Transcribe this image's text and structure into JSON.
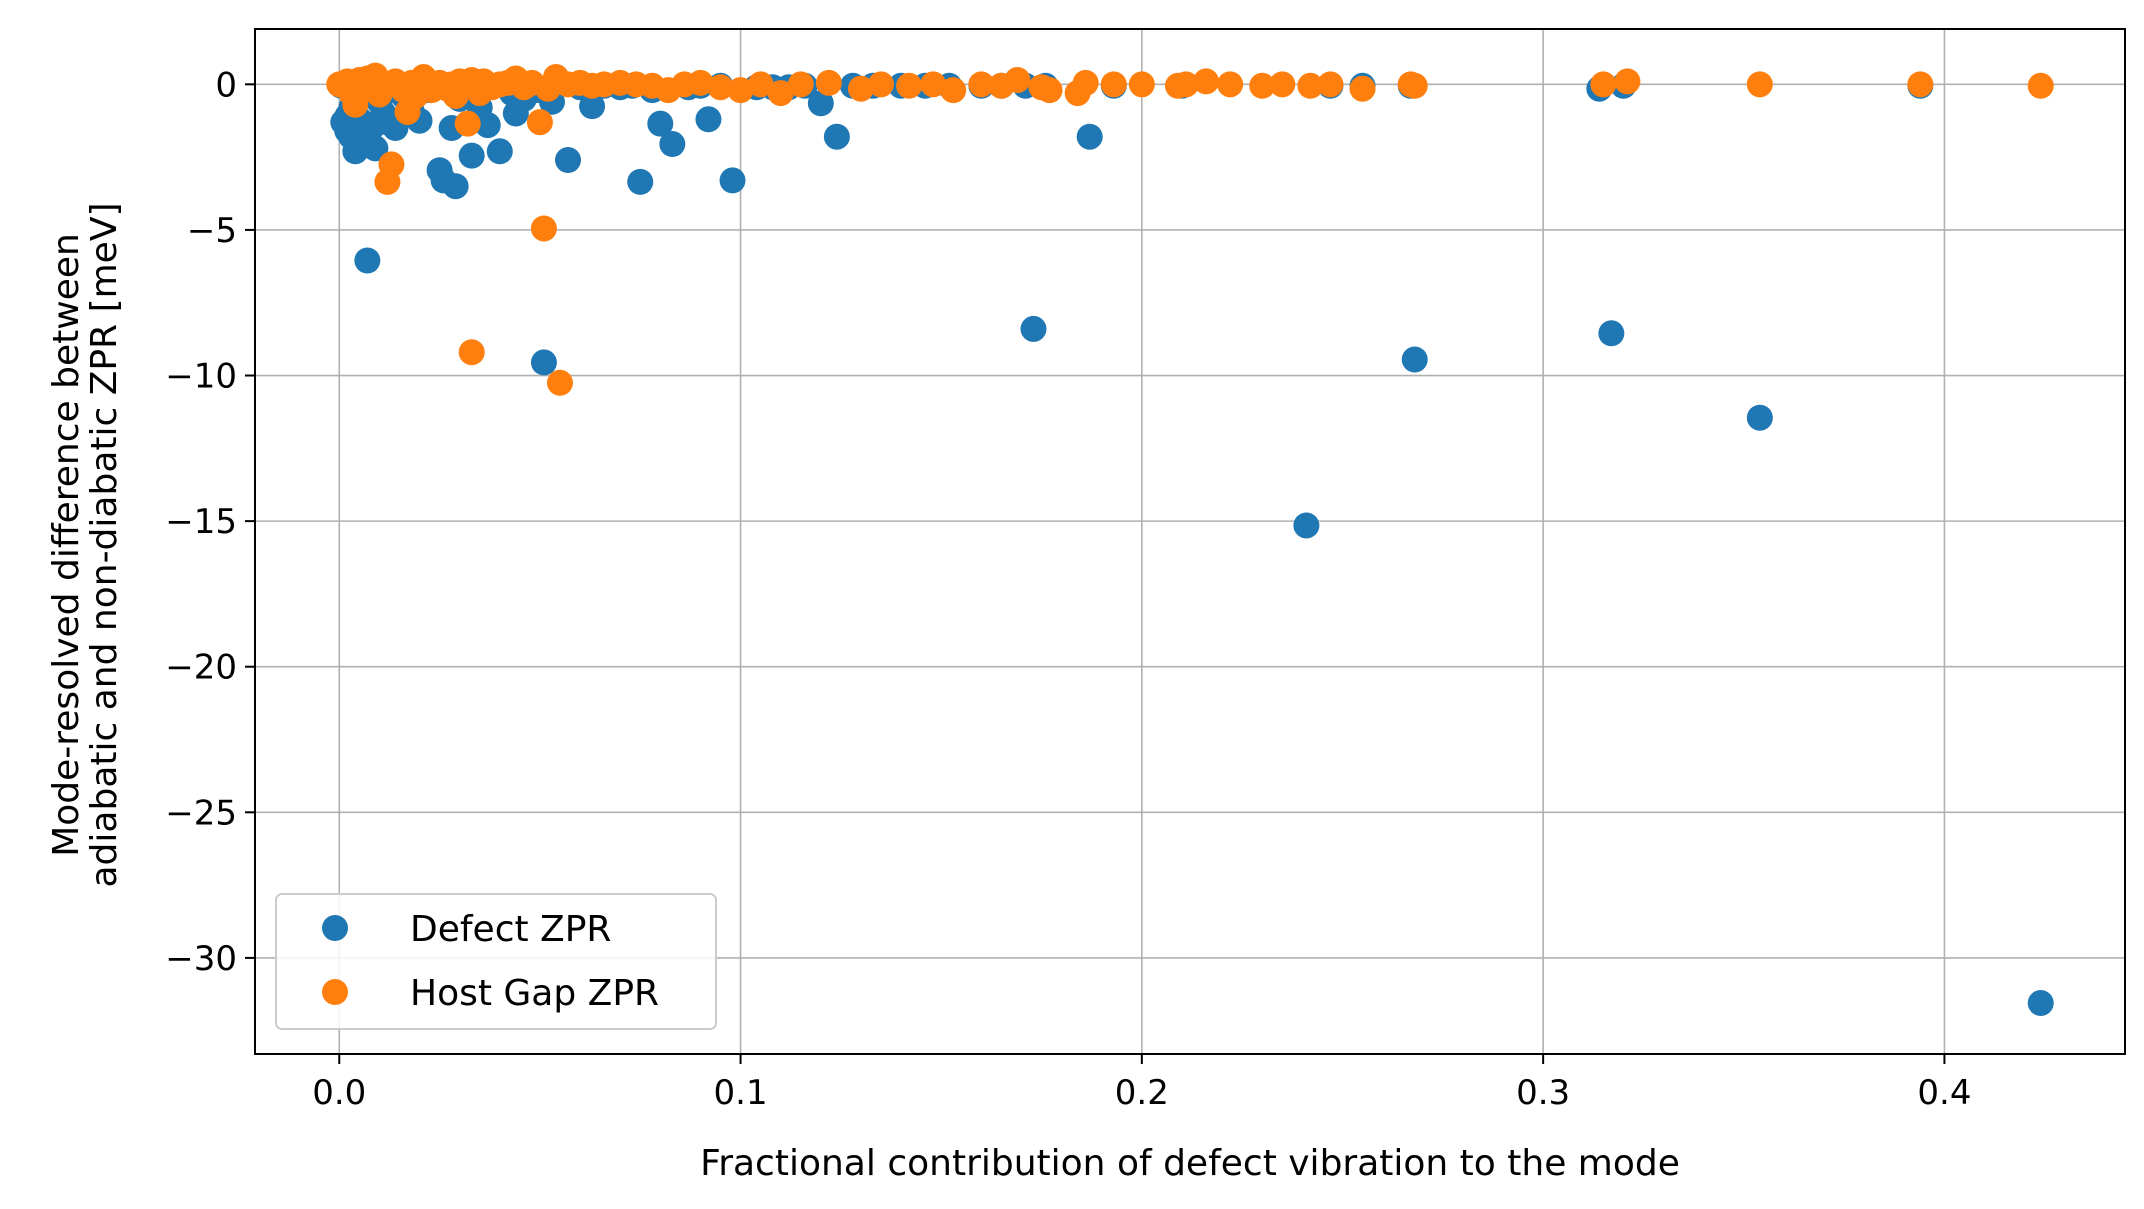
{
  "chart_data": {
    "type": "scatter",
    "xlabel": "Fractional contribution of defect vibration to the mode",
    "ylabel": [
      "Mode-resolved difference between",
      "adiabatic and non-diabatic ZPR [meV]"
    ],
    "xlim": [
      -0.021,
      0.445
    ],
    "ylim": [
      -33.3,
      1.9
    ],
    "xticks": [
      0.0,
      0.1,
      0.2,
      0.3,
      0.4
    ],
    "xtick_labels": [
      "0.0",
      "0.1",
      "0.2",
      "0.3",
      "0.4"
    ],
    "yticks": [
      0,
      -5,
      -10,
      -15,
      -20,
      -25,
      -30
    ],
    "ytick_labels": [
      "0",
      "−5",
      "−10",
      "−15",
      "−20",
      "−25",
      "−30"
    ],
    "grid": true,
    "legend_position": "lower-left",
    "series": [
      {
        "name": "Defect ZPR",
        "color": "#1f77b4",
        "points": [
          [
            0.0005,
            -0.05
          ],
          [
            0.001,
            -1.3
          ],
          [
            0.002,
            -1.6
          ],
          [
            0.002,
            -1.1
          ],
          [
            0.003,
            -0.8
          ],
          [
            0.003,
            -1.8
          ],
          [
            0.004,
            -2.3
          ],
          [
            0.004,
            -0.5
          ],
          [
            0.005,
            -1.2
          ],
          [
            0.006,
            -0.3
          ],
          [
            0.006,
            -2.1
          ],
          [
            0.007,
            -1.9
          ],
          [
            0.007,
            -6.05
          ],
          [
            0.008,
            -1.5
          ],
          [
            0.009,
            -2.2
          ],
          [
            0.01,
            -0.6
          ],
          [
            0.011,
            -1.0
          ],
          [
            0.012,
            -1.3
          ],
          [
            0.014,
            -1.5
          ],
          [
            0.016,
            -0.4
          ],
          [
            0.018,
            -0.9
          ],
          [
            0.02,
            -1.25
          ],
          [
            0.022,
            -0.2
          ],
          [
            0.025,
            -2.95
          ],
          [
            0.026,
            -3.3
          ],
          [
            0.028,
            -1.5
          ],
          [
            0.029,
            -3.5
          ],
          [
            0.03,
            -0.5
          ],
          [
            0.033,
            -2.45
          ],
          [
            0.035,
            -0.8
          ],
          [
            0.037,
            -1.4
          ],
          [
            0.04,
            -2.3
          ],
          [
            0.043,
            -0.3
          ],
          [
            0.044,
            -1.0
          ],
          [
            0.046,
            -0.5
          ],
          [
            0.049,
            -0.2
          ],
          [
            0.051,
            -9.55
          ],
          [
            0.053,
            -0.6
          ],
          [
            0.057,
            -2.6
          ],
          [
            0.06,
            -0.1
          ],
          [
            0.063,
            -0.75
          ],
          [
            0.066,
            -0.05
          ],
          [
            0.07,
            -0.1
          ],
          [
            0.073,
            -0.05
          ],
          [
            0.075,
            -3.35
          ],
          [
            0.078,
            -0.2
          ],
          [
            0.08,
            -1.35
          ],
          [
            0.083,
            -2.05
          ],
          [
            0.087,
            -0.1
          ],
          [
            0.09,
            -0.05
          ],
          [
            0.092,
            -1.2
          ],
          [
            0.095,
            -0.05
          ],
          [
            0.098,
            -3.3
          ],
          [
            0.104,
            -0.1
          ],
          [
            0.108,
            -0.1
          ],
          [
            0.112,
            -0.1
          ],
          [
            0.116,
            -0.05
          ],
          [
            0.12,
            -0.65
          ],
          [
            0.124,
            -1.8
          ],
          [
            0.128,
            -0.05
          ],
          [
            0.133,
            -0.05
          ],
          [
            0.14,
            -0.05
          ],
          [
            0.146,
            -0.05
          ],
          [
            0.152,
            -0.05
          ],
          [
            0.16,
            -0.05
          ],
          [
            0.165,
            -0.05
          ],
          [
            0.171,
            -0.05
          ],
          [
            0.173,
            -8.4
          ],
          [
            0.176,
            -0.05
          ],
          [
            0.187,
            -1.8
          ],
          [
            0.193,
            -0.05
          ],
          [
            0.21,
            -0.05
          ],
          [
            0.241,
            -15.15
          ],
          [
            0.247,
            -0.05
          ],
          [
            0.255,
            -0.05
          ],
          [
            0.267,
            -0.05
          ],
          [
            0.268,
            -9.45
          ],
          [
            0.314,
            -0.15
          ],
          [
            0.317,
            -8.55
          ],
          [
            0.32,
            -0.05
          ],
          [
            0.354,
            -11.45
          ],
          [
            0.394,
            -0.05
          ],
          [
            0.424,
            -31.55
          ]
        ]
      },
      {
        "name": "Host Gap ZPR",
        "color": "#ff7f0e",
        "points": [
          [
            0.0,
            0.0
          ],
          [
            0.002,
            0.1
          ],
          [
            0.003,
            -0.3
          ],
          [
            0.004,
            -0.7
          ],
          [
            0.005,
            0.15
          ],
          [
            0.006,
            -0.2
          ],
          [
            0.007,
            0.2
          ],
          [
            0.008,
            0.05
          ],
          [
            0.009,
            0.3
          ],
          [
            0.01,
            -0.35
          ],
          [
            0.011,
            0.0
          ],
          [
            0.012,
            -3.35
          ],
          [
            0.013,
            -2.75
          ],
          [
            0.014,
            0.1
          ],
          [
            0.016,
            -0.2
          ],
          [
            0.017,
            -0.95
          ],
          [
            0.018,
            0.05
          ],
          [
            0.019,
            -0.4
          ],
          [
            0.02,
            0.05
          ],
          [
            0.021,
            0.25
          ],
          [
            0.023,
            -0.2
          ],
          [
            0.025,
            0.05
          ],
          [
            0.027,
            -0.15
          ],
          [
            0.028,
            0.0
          ],
          [
            0.029,
            -0.4
          ],
          [
            0.03,
            0.1
          ],
          [
            0.032,
            -1.35
          ],
          [
            0.033,
            0.15
          ],
          [
            0.033,
            -9.2
          ],
          [
            0.035,
            -0.3
          ],
          [
            0.036,
            0.1
          ],
          [
            0.038,
            -0.1
          ],
          [
            0.04,
            0.0
          ],
          [
            0.042,
            0.05
          ],
          [
            0.044,
            0.2
          ],
          [
            0.046,
            -0.1
          ],
          [
            0.048,
            0.05
          ],
          [
            0.05,
            -1.3
          ],
          [
            0.051,
            -4.95
          ],
          [
            0.052,
            -0.15
          ],
          [
            0.054,
            0.25
          ],
          [
            0.055,
            -10.25
          ],
          [
            0.057,
            0.0
          ],
          [
            0.06,
            0.05
          ],
          [
            0.063,
            -0.05
          ],
          [
            0.066,
            0.0
          ],
          [
            0.07,
            0.05
          ],
          [
            0.074,
            0.0
          ],
          [
            0.078,
            -0.05
          ],
          [
            0.082,
            -0.2
          ],
          [
            0.086,
            0.0
          ],
          [
            0.09,
            0.05
          ],
          [
            0.095,
            -0.1
          ],
          [
            0.1,
            -0.2
          ],
          [
            0.105,
            0.0
          ],
          [
            0.11,
            -0.3
          ],
          [
            0.115,
            0.0
          ],
          [
            0.122,
            0.05
          ],
          [
            0.13,
            -0.15
          ],
          [
            0.135,
            0.0
          ],
          [
            0.142,
            -0.05
          ],
          [
            0.148,
            0.0
          ],
          [
            0.153,
            -0.2
          ],
          [
            0.16,
            0.0
          ],
          [
            0.165,
            -0.05
          ],
          [
            0.169,
            0.15
          ],
          [
            0.175,
            -0.1
          ],
          [
            0.177,
            -0.2
          ],
          [
            0.184,
            -0.3
          ],
          [
            0.186,
            0.05
          ],
          [
            0.193,
            0.0
          ],
          [
            0.2,
            0.0
          ],
          [
            0.209,
            -0.05
          ],
          [
            0.211,
            0.0
          ],
          [
            0.216,
            0.1
          ],
          [
            0.222,
            0.0
          ],
          [
            0.23,
            -0.05
          ],
          [
            0.235,
            0.0
          ],
          [
            0.242,
            -0.05
          ],
          [
            0.247,
            0.0
          ],
          [
            0.255,
            -0.15
          ],
          [
            0.267,
            0.0
          ],
          [
            0.268,
            -0.05
          ],
          [
            0.315,
            0.0
          ],
          [
            0.321,
            0.1
          ],
          [
            0.354,
            0.0
          ],
          [
            0.394,
            0.0
          ],
          [
            0.424,
            -0.05
          ]
        ]
      }
    ]
  }
}
